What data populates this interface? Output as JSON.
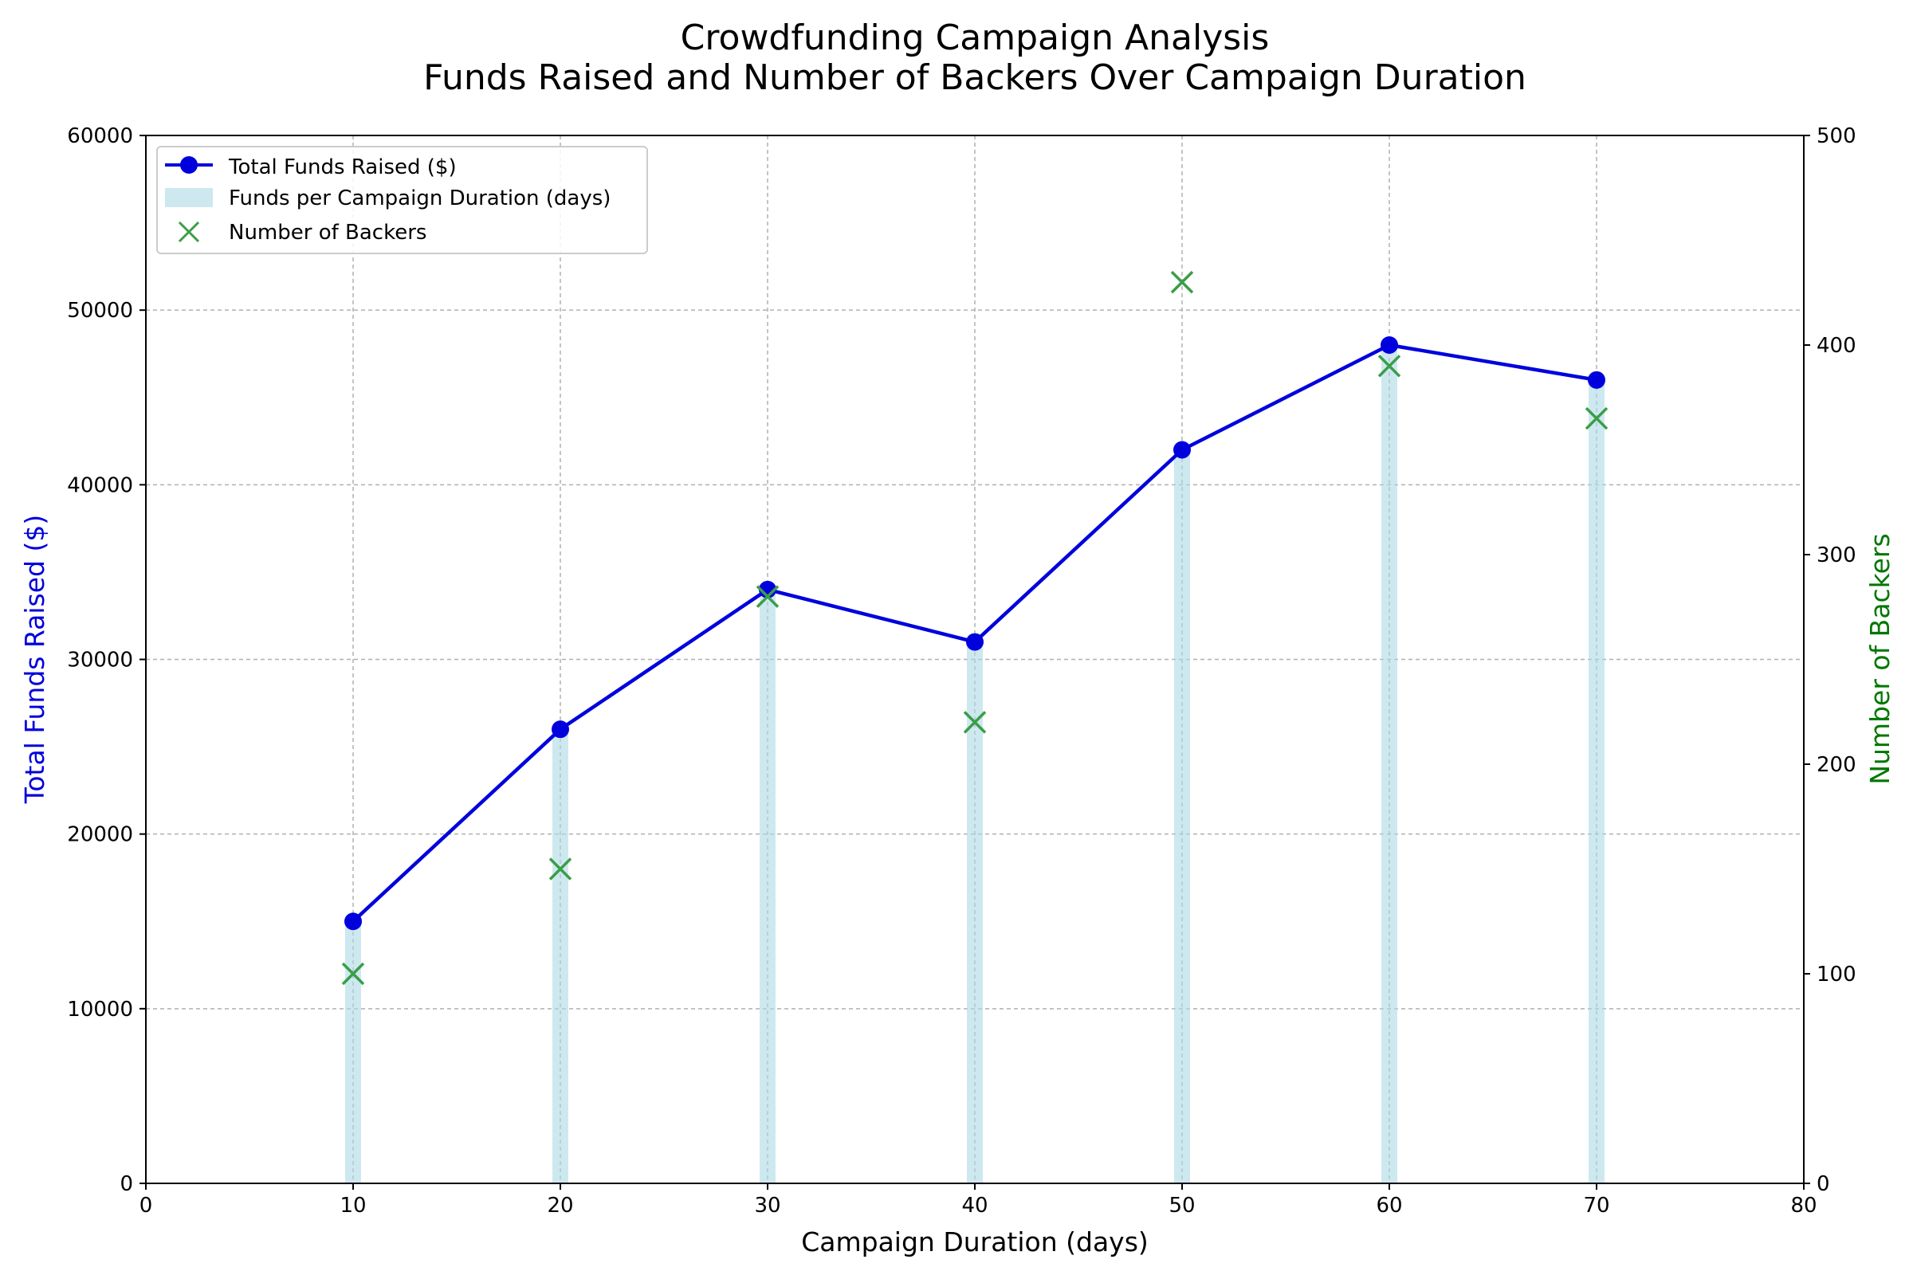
{
  "chart_data": {
    "type": "bar+line+scatter",
    "title_line1": "Crowdfunding Campaign Analysis",
    "title_line2": "Funds Raised and Number of Backers Over Campaign Duration",
    "xlabel": "Campaign Duration (days)",
    "ylabel_left": "Total Funds Raised ($)",
    "ylabel_right": "Number of Backers",
    "xlim": [
      0,
      80
    ],
    "ylim_left": [
      0,
      60000
    ],
    "ylim_right": [
      0,
      500
    ],
    "x_ticks": [
      "0",
      "10",
      "20",
      "30",
      "40",
      "50",
      "60",
      "70",
      "80"
    ],
    "y_ticks_left": [
      "0",
      "10000",
      "20000",
      "30000",
      "40000",
      "50000",
      "60000"
    ],
    "y_ticks_right": [
      "0",
      "100",
      "200",
      "300",
      "400",
      "500"
    ],
    "grid": true,
    "legend_position": "top-left",
    "x": [
      10,
      20,
      30,
      40,
      50,
      60,
      70
    ],
    "series": [
      {
        "name": "Total Funds Raised ($)",
        "kind": "line",
        "axis": "left",
        "color": "#0000dd",
        "values": [
          15000,
          26000,
          34000,
          31000,
          42000,
          48000,
          46000
        ]
      },
      {
        "name": "Funds per Campaign Duration (days)",
        "kind": "bar",
        "axis": "left",
        "color": "#add8e6",
        "values": [
          15000,
          26000,
          34000,
          31000,
          42000,
          48000,
          46000
        ]
      },
      {
        "name": "Number of Backers",
        "kind": "scatter",
        "axis": "right",
        "color": "#3a9e48",
        "values": [
          100,
          150,
          280,
          220,
          430,
          390,
          365
        ]
      }
    ],
    "colors": {
      "left_axis_label": "#0000dd",
      "right_axis_label": "#007700",
      "grid": "#b0b0b0"
    }
  }
}
